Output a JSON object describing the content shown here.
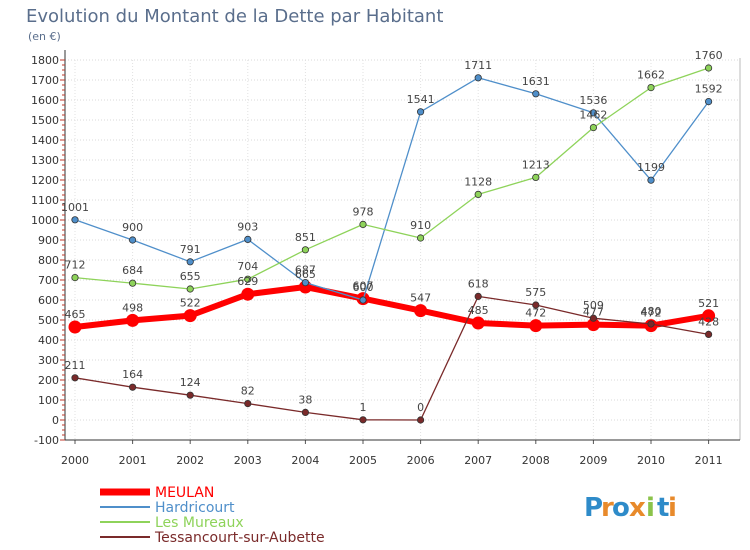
{
  "chart_data": {
    "type": "line",
    "title": "Evolution du Montant de la Dette par Habitant",
    "subtitle": "(en €)",
    "xlabel": "",
    "ylabel": "",
    "x": [
      "2000",
      "2001",
      "2002",
      "2003",
      "2004",
      "2005",
      "2006",
      "2007",
      "2008",
      "2009",
      "2010",
      "2011"
    ],
    "ylim": [
      -100,
      1800
    ],
    "yticks": [
      -100,
      0,
      100,
      200,
      300,
      400,
      500,
      600,
      700,
      800,
      900,
      1000,
      1100,
      1200,
      1300,
      1400,
      1500,
      1600,
      1700,
      1800
    ],
    "grid": true,
    "legend_position": "bottom-left",
    "series": [
      {
        "name": "MEULAN",
        "color": "#ff0000",
        "values": [
          465,
          498,
          522,
          629,
          665,
          607,
          547,
          485,
          472,
          477,
          472,
          521
        ]
      },
      {
        "name": "Hardricourt",
        "color": "#4f8fca",
        "values": [
          1001,
          900,
          791,
          903,
          687,
          600,
          1541,
          1711,
          1631,
          1536,
          1199,
          1592
        ]
      },
      {
        "name": "Les Mureaux",
        "color": "#8ed35a",
        "values": [
          712,
          684,
          655,
          704,
          851,
          978,
          910,
          1128,
          1213,
          1462,
          1662,
          1760
        ]
      },
      {
        "name": "Tessancourt-sur-Aubette",
        "color": "#7a2a2a",
        "values": [
          211,
          164,
          124,
          82,
          38,
          1,
          0,
          618,
          575,
          509,
          480,
          428
        ]
      }
    ]
  },
  "branding": {
    "logo_letters": [
      "P",
      "r",
      "o",
      "x",
      "i",
      "t",
      "i"
    ],
    "logo_colors": [
      "#2e8bc9",
      "#e88a2b",
      "#2e8bc9",
      "#e88a2b",
      "#8bc34a",
      "#2e8bc9",
      "#e88a2b"
    ]
  }
}
